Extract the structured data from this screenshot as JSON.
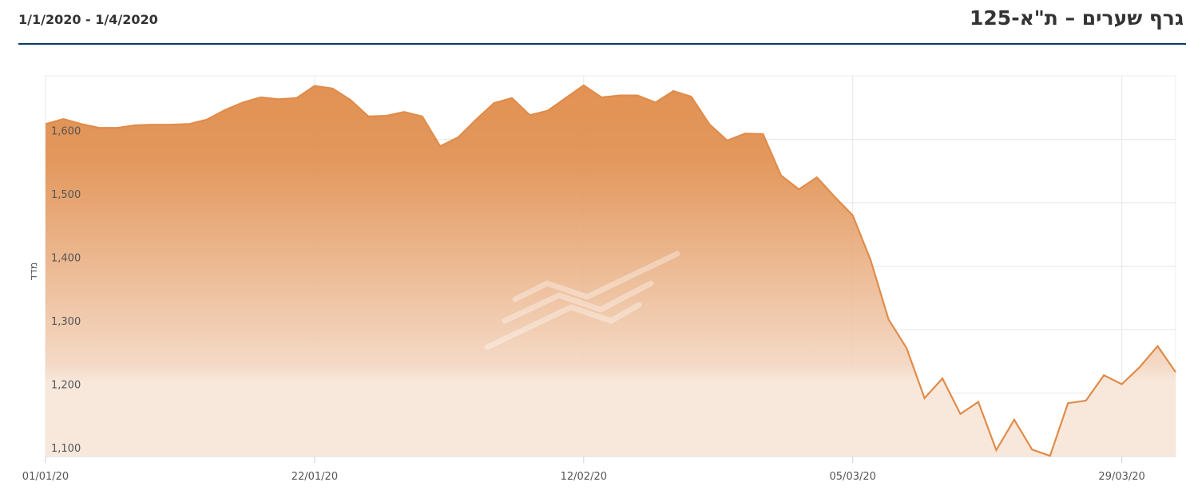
{
  "header": {
    "title": "גרף שערים – ת\"א-125",
    "date_range": "1/1/2020 - 1/4/2020"
  },
  "colors": {
    "line": "#e08c4a",
    "fill_top": "#e08c4a",
    "fill_bottom": "#f8e8dc",
    "rule": "#0b3b6b",
    "grid": "#e6e6e6"
  },
  "chart_data": {
    "type": "area",
    "ylabel": "מדד",
    "ylim": [
      1100,
      1700
    ],
    "y_ticks": [
      1100,
      1200,
      1300,
      1400,
      1500,
      1600
    ],
    "y_tick_labels": [
      "1,100",
      "1,200",
      "1,300",
      "1,400",
      "1,500",
      "1,600"
    ],
    "x_tick_labels": [
      "01/01/20",
      "22/01/20",
      "12/02/20",
      "05/03/20",
      "29/03/20"
    ],
    "grid": true,
    "values": [
      1624,
      1632,
      1624,
      1618,
      1618,
      1622,
      1623,
      1623,
      1624,
      1631,
      1646,
      1658,
      1666,
      1663,
      1665,
      1684,
      1680,
      1662,
      1636,
      1637,
      1643,
      1636,
      1589,
      1603,
      1631,
      1657,
      1665,
      1638,
      1645,
      1665,
      1685,
      1666,
      1669,
      1669,
      1658,
      1676,
      1667,
      1624,
      1598,
      1609,
      1608,
      1543,
      1521,
      1540,
      1509,
      1480,
      1409,
      1316,
      1271,
      1192,
      1223,
      1167,
      1186,
      1110,
      1158,
      1111,
      1101,
      1184,
      1188,
      1228,
      1214,
      1241,
      1274,
      1233
    ]
  }
}
